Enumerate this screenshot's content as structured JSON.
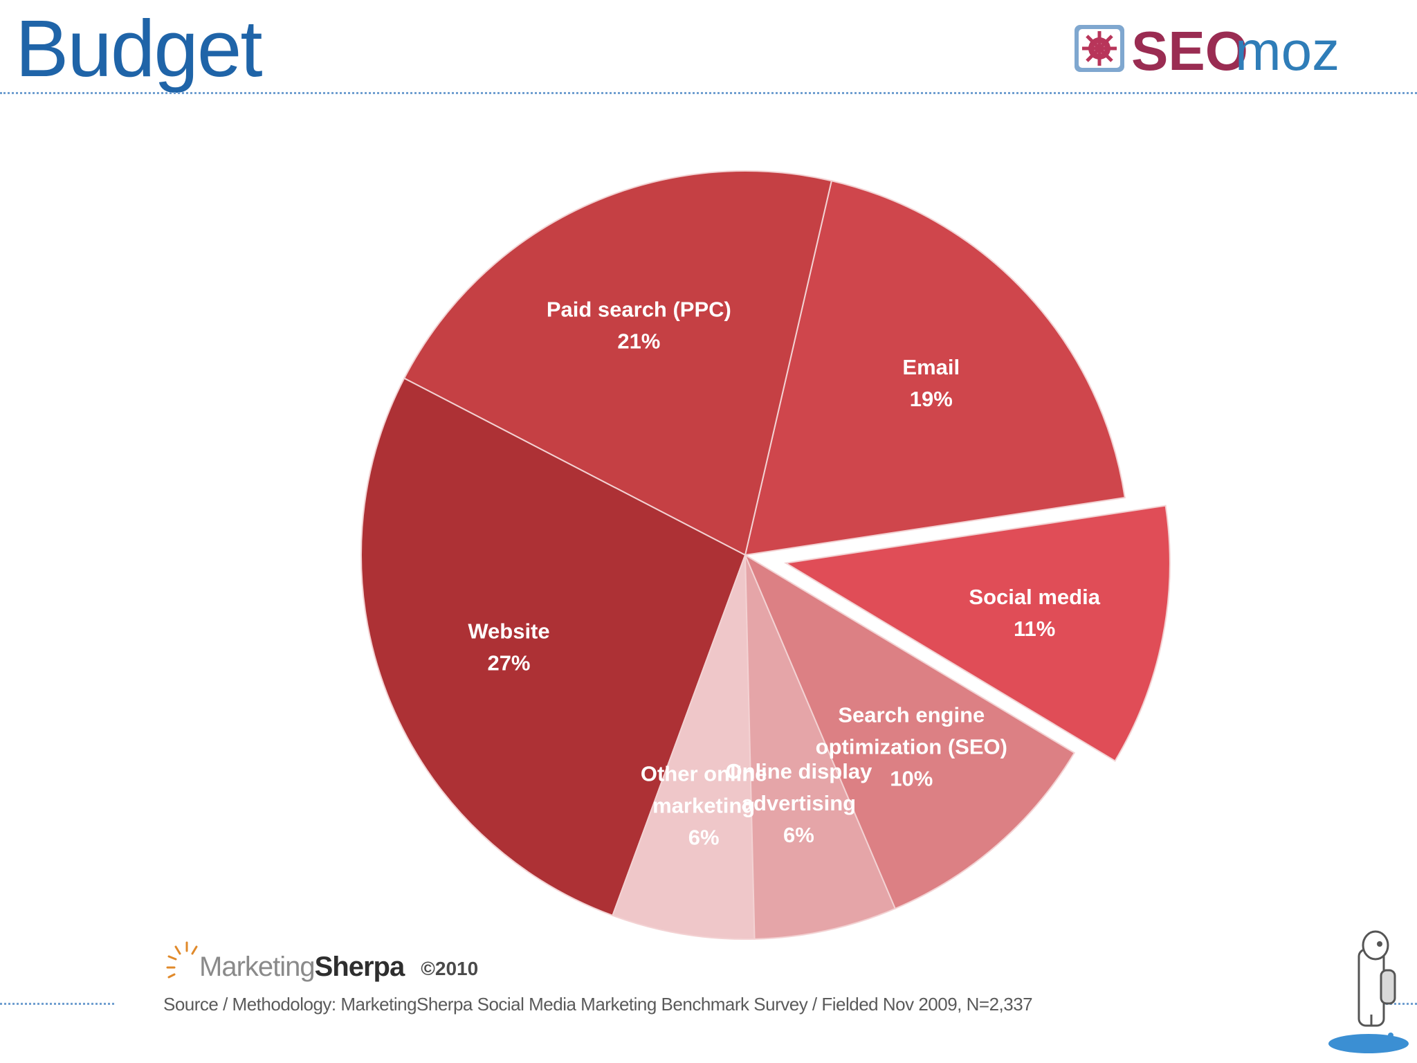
{
  "slide": {
    "title": "Budget",
    "brand_logo": {
      "text_bold": "SEO",
      "text_light": "moz",
      "icon": "sun-gear-icon",
      "colors": {
        "bold": "#9a2c52",
        "light": "#2f7db8",
        "icon_bg": "#7fa7cf"
      }
    },
    "mascot": {
      "icon": "robot-mascot-icon"
    },
    "rule_color": "#6f9ed0",
    "title_color": "#1f64a8"
  },
  "chart_data": {
    "type": "pie",
    "title": "",
    "exploded": [
      "Social media"
    ],
    "start_angle_deg": -31,
    "direction": "counterclockwise",
    "slices": [
      {
        "label_lines": [
          "Social media"
        ],
        "percent_text": "11%",
        "value": 11,
        "color": "#e04d57"
      },
      {
        "label_lines": [
          "Email"
        ],
        "percent_text": "19%",
        "value": 19,
        "color": "#cf464c"
      },
      {
        "label_lines": [
          "Paid search (PPC)"
        ],
        "percent_text": "21%",
        "value": 21,
        "color": "#c54044"
      },
      {
        "label_lines": [
          "Website"
        ],
        "percent_text": "27%",
        "value": 27,
        "color": "#ad3135"
      },
      {
        "label_lines": [
          "Other online",
          "marketing"
        ],
        "percent_text": "6%",
        "value": 6,
        "color": "#efc7c9"
      },
      {
        "label_lines": [
          "Online display",
          "advertising"
        ],
        "percent_text": "6%",
        "value": 6,
        "color": "#e5a5a8"
      },
      {
        "label_lines": [
          "Search engine",
          "optimization (SEO)"
        ],
        "percent_text": "10%",
        "value": 10,
        "color": "#dc8084"
      }
    ]
  },
  "footer": {
    "sherpa_name_light": "Marketing",
    "sherpa_name_bold": "Sherpa",
    "copyright": "©2010",
    "source": "Source / Methodology: MarketingSherpa Social Media Marketing Benchmark Survey / Fielded Nov 2009, N=2,337"
  }
}
